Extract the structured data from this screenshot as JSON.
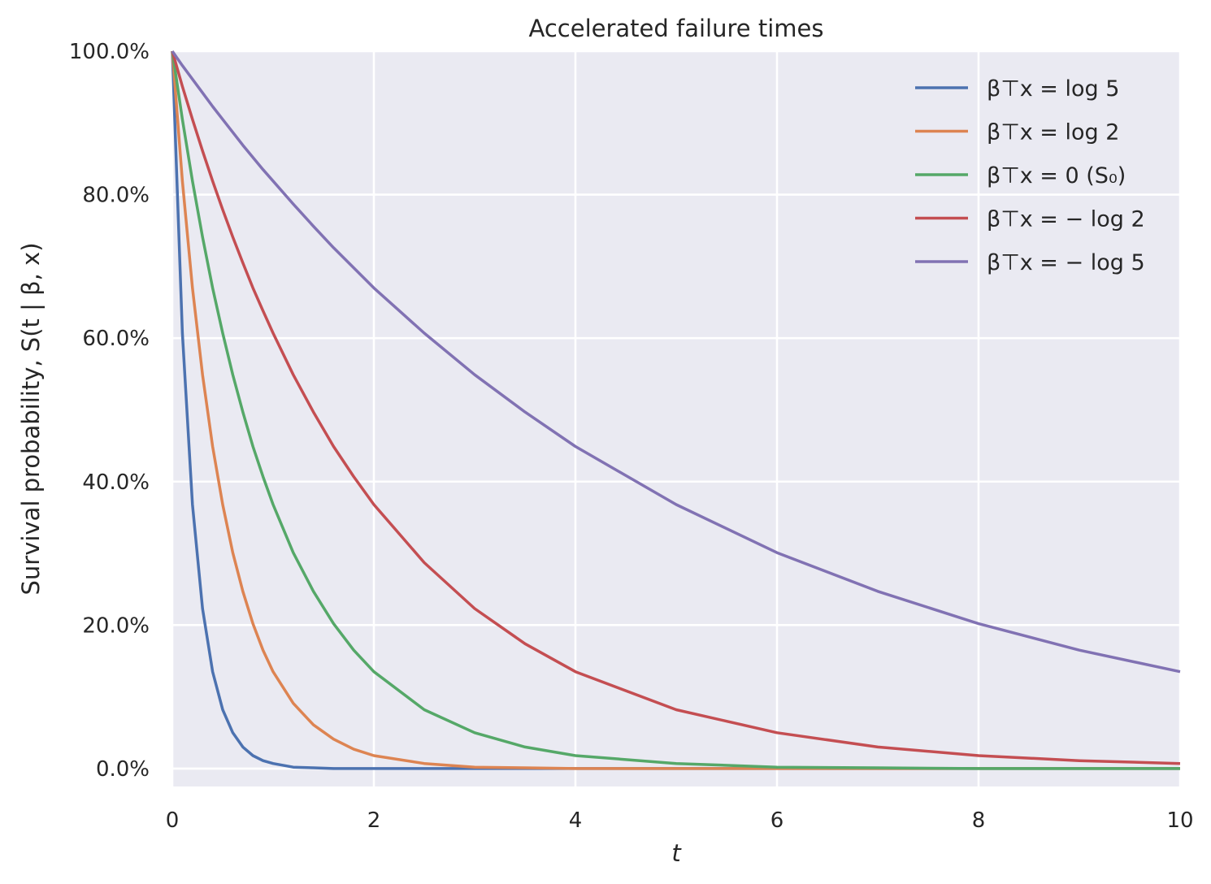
{
  "chart_data": {
    "type": "line",
    "title": "Accelerated failure times",
    "xlabel": "t",
    "ylabel": "Survival probability, S(t | β, x)",
    "xlim": [
      0,
      10
    ],
    "ylim": [
      -0.025,
      1.0
    ],
    "x_ticks": [
      0,
      2,
      4,
      6,
      8,
      10
    ],
    "x_tick_labels": [
      "0",
      "2",
      "4",
      "6",
      "8",
      "10"
    ],
    "y_ticks": [
      0,
      0.2,
      0.4,
      0.6,
      0.8,
      1.0
    ],
    "y_tick_labels": [
      "0.0%",
      "20.0%",
      "40.0%",
      "60.0%",
      "80.0%",
      "100.0%"
    ],
    "grid": true,
    "legend_position": "top-right",
    "background_color": "#eaeaf2",
    "x": [
      0,
      0.1,
      0.2,
      0.3,
      0.4,
      0.5,
      0.6,
      0.7,
      0.8,
      0.9,
      1.0,
      1.2,
      1.4,
      1.6,
      1.8,
      2.0,
      2.5,
      3.0,
      3.5,
      4.0,
      5.0,
      6.0,
      7.0,
      8.0,
      9.0,
      10.0
    ],
    "series": [
      {
        "name": "β⊤x = log 5",
        "color": "#4c72b0",
        "values": [
          1.0,
          0.607,
          0.368,
          0.223,
          0.135,
          0.082,
          0.05,
          0.03,
          0.018,
          0.011,
          0.007,
          0.002,
          0.001,
          0.0,
          0.0,
          0.0,
          0.0,
          0.0,
          0.0,
          0.0,
          0.0,
          0.0,
          0.0,
          0.0,
          0.0,
          0.0
        ]
      },
      {
        "name": "β⊤x = log 2",
        "color": "#dd8452",
        "values": [
          1.0,
          0.819,
          0.67,
          0.549,
          0.449,
          0.368,
          0.301,
          0.247,
          0.202,
          0.165,
          0.135,
          0.091,
          0.061,
          0.041,
          0.027,
          0.018,
          0.007,
          0.002,
          0.001,
          0.0,
          0.0,
          0.0,
          0.0,
          0.0,
          0.0,
          0.0
        ]
      },
      {
        "name": "β⊤x = 0 (S₀)",
        "color": "#55a868",
        "values": [
          1.0,
          0.905,
          0.819,
          0.741,
          0.67,
          0.607,
          0.549,
          0.497,
          0.449,
          0.407,
          0.368,
          0.301,
          0.247,
          0.202,
          0.165,
          0.135,
          0.082,
          0.05,
          0.03,
          0.018,
          0.007,
          0.002,
          0.001,
          0.0,
          0.0,
          0.0
        ]
      },
      {
        "name": "β⊤x = − log 2",
        "color": "#c44e52",
        "values": [
          1.0,
          0.951,
          0.905,
          0.861,
          0.819,
          0.779,
          0.741,
          0.705,
          0.67,
          0.638,
          0.607,
          0.549,
          0.497,
          0.449,
          0.407,
          0.368,
          0.287,
          0.223,
          0.174,
          0.135,
          0.082,
          0.05,
          0.03,
          0.018,
          0.011,
          0.007
        ]
      },
      {
        "name": "β⊤x = − log 5",
        "color": "#8172b3",
        "values": [
          1.0,
          0.98,
          0.961,
          0.942,
          0.923,
          0.905,
          0.887,
          0.869,
          0.852,
          0.835,
          0.819,
          0.787,
          0.756,
          0.726,
          0.698,
          0.67,
          0.607,
          0.549,
          0.497,
          0.449,
          0.368,
          0.301,
          0.247,
          0.202,
          0.165,
          0.135
        ]
      }
    ]
  }
}
